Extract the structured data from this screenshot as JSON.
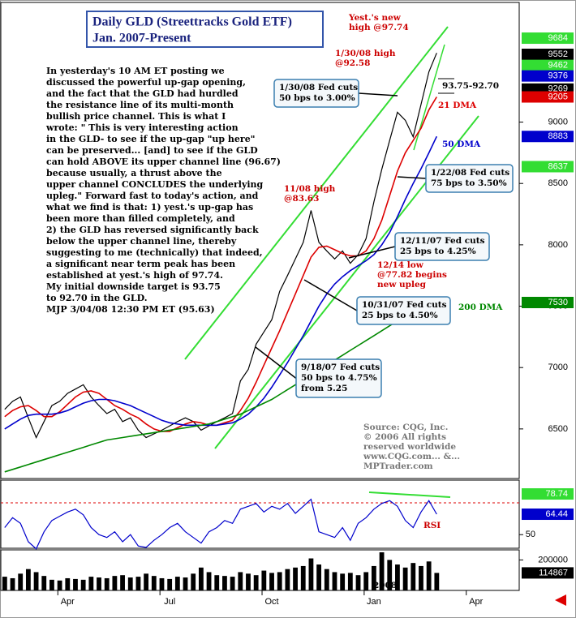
{
  "chart_data": {
    "type": "line",
    "title": "Daily GLD (Streettracks Gold ETF)",
    "subtitle": "Jan. 2007-Present",
    "commentary": [
      "In yesterday's 10 AM ET posting we",
      "discussed the powerful up-gap opening,",
      "and the fact that the GLD had hurdled",
      "the resistance line of its multi-month",
      "bullish price channel. This is what I",
      "wrote: \" This is very interesting action",
      "in the GLD- to see if the up-gap \"up here\"",
      "can be preserved... [and] to see if the GLD",
      "can hold ABOVE its upper channel line (96.67)",
      "because usually, a thrust above the",
      "upper channel CONCLUDES the underlying",
      "upleg.\" Forward fast to today's action, and",
      "what we find is that: 1) yest.'s up-gap has",
      "been more than filled completely, and",
      "2) the GLD has reversed significantly back",
      "below the upper channel line, thereby",
      "suggesting to me (technically) that indeed,",
      "a significant near term peak has been",
      "established at yest.'s high of 97.74.",
      "My initial downside target is 93.75",
      "to 92.70 in the GLD.",
      "MJP  3/04/08  12:30 PM ET (95.63)"
    ],
    "annotations": [
      {
        "lines": [
          "1/30/08 Fed cuts",
          "50 bps to 3.00%"
        ]
      },
      {
        "lines": [
          "1/22/08 Fed cuts",
          "75 bps to 3.50%"
        ]
      },
      {
        "lines": [
          "12/11/07 Fed cuts",
          "25 bps to 4.25%"
        ]
      },
      {
        "lines": [
          "10/31/07 Fed cuts",
          "25 bps to 4.50%"
        ]
      },
      {
        "lines": [
          "9/18/07 Fed cuts",
          "50 bps to 4.75%",
          "from 5.25"
        ]
      }
    ],
    "notes": [
      {
        "lines": [
          "Yest.'s new",
          "high @97.74"
        ],
        "color": "#cc0000"
      },
      {
        "lines": [
          "1/30/08 high",
          "@92.58"
        ],
        "color": "#cc0000"
      },
      {
        "lines": [
          "11/08 high",
          "@83.63"
        ],
        "color": "#cc0000"
      },
      {
        "lines": [
          "12/14 low",
          "@77.82 begins",
          "new upleg"
        ],
        "color": "#cc0000"
      },
      {
        "lines": [
          "93.75-92.70"
        ],
        "color": "#000000"
      },
      {
        "lines": [
          "RSI"
        ],
        "color": "#cc0000"
      },
      {
        "lines": [
          "Source: CQG, Inc.",
          "© 2006 All rights",
          "reserved worldwide",
          "www.CQG.com... &...",
          "MPTrader.com"
        ],
        "color": "#777777"
      },
      {
        "lines": [
          "2008"
        ],
        "color": "#000000"
      }
    ],
    "categories": [
      null,
      null,
      null,
      null,
      null,
      null,
      null,
      null,
      "Apr",
      null,
      null,
      null,
      null,
      null,
      null,
      null,
      null,
      null,
      null,
      null,
      null,
      "Jul",
      null,
      null,
      null,
      null,
      null,
      null,
      null,
      null,
      null,
      null,
      null,
      null,
      "Oct",
      null,
      null,
      null,
      null,
      null,
      null,
      null,
      null,
      null,
      null,
      null,
      null,
      "Jan",
      null,
      null,
      null,
      null,
      null,
      null,
      null,
      null,
      null,
      null,
      null,
      null,
      "Apr",
      null,
      null,
      null,
      null,
      null
    ],
    "series": [
      {
        "name": "GLD",
        "color": "#000000",
        "values": [
          6660,
          6725,
          6760,
          6590,
          6430,
          6560,
          6690,
          6725,
          6790,
          6825,
          6860,
          6760,
          6690,
          6625,
          6660,
          6560,
          6590,
          6490,
          6430,
          6460,
          6490,
          6525,
          6560,
          6590,
          6560,
          6490,
          6525,
          6560,
          6590,
          6625,
          6890,
          6985,
          7190,
          7290,
          7390,
          7620,
          7750,
          7885,
          8020,
          8280,
          8020,
          7950,
          7885,
          7950,
          7850,
          7920,
          8050,
          8350,
          8615,
          8850,
          9080,
          9015,
          8880,
          9145,
          9410,
          9563,
          null,
          null,
          null,
          null,
          null,
          null,
          null,
          null,
          null,
          null
        ]
      },
      {
        "name": "21 DMA",
        "color": "#dd0000",
        "values": [
          6600,
          6650,
          6680,
          6690,
          6650,
          6600,
          6600,
          6640,
          6700,
          6760,
          6800,
          6810,
          6790,
          6740,
          6690,
          6660,
          6620,
          6590,
          6540,
          6500,
          6480,
          6480,
          6510,
          6540,
          6560,
          6550,
          6530,
          6530,
          6550,
          6570,
          6650,
          6750,
          6880,
          7020,
          7160,
          7300,
          7450,
          7600,
          7750,
          7900,
          7980,
          7990,
          7960,
          7930,
          7910,
          7910,
          7950,
          8050,
          8200,
          8400,
          8600,
          8750,
          8850,
          8950,
          9100,
          9205,
          null,
          null,
          null,
          null,
          null,
          null,
          null,
          null,
          null,
          null
        ]
      },
      {
        "name": "50 DMA",
        "color": "#0000cc",
        "values": [
          6500,
          6540,
          6580,
          6610,
          6620,
          6620,
          6620,
          6630,
          6650,
          6680,
          6710,
          6730,
          6740,
          6740,
          6730,
          6710,
          6690,
          6660,
          6630,
          6600,
          6570,
          6550,
          6540,
          6530,
          6530,
          6530,
          6530,
          6530,
          6540,
          6550,
          6580,
          6620,
          6680,
          6750,
          6840,
          6940,
          7040,
          7150,
          7260,
          7380,
          7500,
          7600,
          7680,
          7740,
          7790,
          7830,
          7870,
          7920,
          8000,
          8100,
          8230,
          8370,
          8500,
          8620,
          8750,
          8883,
          null,
          null,
          null,
          null,
          null,
          null,
          null,
          null,
          null,
          null
        ]
      },
      {
        "name": "200 DMA",
        "color": "#008800",
        "values": [
          6150,
          6170,
          6190,
          6210,
          6230,
          6250,
          6270,
          6290,
          6310,
          6330,
          6350,
          6370,
          6390,
          6410,
          6420,
          6430,
          6440,
          6450,
          6460,
          6470,
          6480,
          6490,
          6500,
          6510,
          6520,
          6530,
          6540,
          6560,
          6580,
          6600,
          6620,
          6650,
          6680,
          6710,
          6740,
          6780,
          6820,
          6860,
          6900,
          6940,
          6980,
          7020,
          7060,
          7100,
          7140,
          7180,
          7220,
          7260,
          7300,
          7340,
          7380,
          7420,
          7460,
          7490,
          7510,
          7530,
          null,
          null,
          null,
          null,
          null,
          null,
          null,
          null,
          null,
          null
        ]
      }
    ],
    "ylim": [
      6096,
      9975
    ],
    "yticks": [
      6500,
      7000,
      7500,
      8000,
      8500,
      9000
    ],
    "markers": [
      {
        "value": 9684,
        "color": "#33dd33"
      },
      {
        "value": 9552,
        "color": "#000000"
      },
      {
        "value": 9462,
        "color": "#33dd33"
      },
      {
        "value": 9376,
        "color": "#0000cc"
      },
      {
        "value": 9269,
        "color": "#000000"
      },
      {
        "value": 9205,
        "color": "#dd0000"
      },
      {
        "value": 8883,
        "color": "#0000cc"
      },
      {
        "value": 8637,
        "color": "#33dd33"
      },
      {
        "value": 7530,
        "color": "#008800"
      }
    ],
    "rsi": {
      "name": "RSI",
      "color": "#0000cc",
      "values": [
        55,
        62,
        58,
        45,
        40,
        52,
        60,
        63,
        66,
        68,
        64,
        55,
        50,
        48,
        52,
        45,
        50,
        42,
        41,
        46,
        50,
        55,
        58,
        52,
        48,
        44,
        52,
        55,
        60,
        58,
        68,
        70,
        72,
        66,
        70,
        68,
        72,
        65,
        70,
        75,
        52,
        50,
        48,
        55,
        46,
        58,
        62,
        68,
        72,
        74,
        70,
        60,
        55,
        66,
        74,
        64.44,
        null,
        null,
        null,
        null,
        null,
        null,
        null,
        null,
        null,
        null
      ],
      "ylim": [
        40.4,
        88.5
      ],
      "yticks": [
        50
      ],
      "markers": [
        {
          "value": 78.74,
          "color": "#33dd33"
        },
        {
          "value": 64.44,
          "color": "#0000cc"
        }
      ]
    },
    "volume": {
      "name": "Volume",
      "color": "#000000",
      "values": [
        90000,
        80000,
        110000,
        140000,
        120000,
        95000,
        70000,
        65000,
        80000,
        75000,
        70000,
        90000,
        85000,
        80000,
        95000,
        100000,
        85000,
        90000,
        110000,
        95000,
        80000,
        75000,
        90000,
        85000,
        110000,
        150000,
        120000,
        100000,
        95000,
        90000,
        120000,
        110000,
        100000,
        130000,
        115000,
        120000,
        140000,
        150000,
        160000,
        210000,
        170000,
        140000,
        120000,
        110000,
        115000,
        100000,
        120000,
        160000,
        250000,
        200000,
        170000,
        150000,
        180000,
        160000,
        190000,
        114867,
        null,
        null,
        null,
        null,
        null,
        null,
        null,
        null,
        null,
        null
      ],
      "ylim": [
        0,
        266000
      ],
      "yticks": [
        200000
      ],
      "markers": [
        {
          "value": 114867,
          "color": "#000000"
        }
      ]
    }
  }
}
